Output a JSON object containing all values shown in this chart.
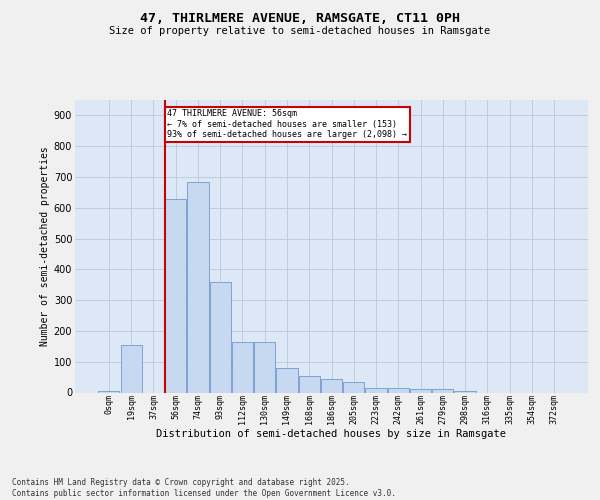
{
  "title": "47, THIRLMERE AVENUE, RAMSGATE, CT11 0PH",
  "subtitle": "Size of property relative to semi-detached houses in Ramsgate",
  "xlabel": "Distribution of semi-detached houses by size in Ramsgate",
  "ylabel": "Number of semi-detached properties",
  "categories": [
    "0sqm",
    "19sqm",
    "37sqm",
    "56sqm",
    "74sqm",
    "93sqm",
    "112sqm",
    "130sqm",
    "149sqm",
    "168sqm",
    "186sqm",
    "205sqm",
    "223sqm",
    "242sqm",
    "261sqm",
    "279sqm",
    "298sqm",
    "316sqm",
    "335sqm",
    "354sqm",
    "372sqm"
  ],
  "values": [
    5,
    155,
    0,
    630,
    685,
    360,
    165,
    165,
    80,
    55,
    45,
    35,
    15,
    15,
    12,
    10,
    5,
    0,
    0,
    0,
    0
  ],
  "bar_color": "#c6d9f0",
  "bar_edge_color": "#5a8ac6",
  "property_bar_index": 3,
  "annotation_text": "47 THIRLMERE AVENUE: 56sqm\n← 7% of semi-detached houses are smaller (153)\n93% of semi-detached houses are larger (2,098) →",
  "annotation_box_color": "#ffffff",
  "annotation_box_edge": "#cc0000",
  "vline_color": "#cc0000",
  "grid_color": "#b8c8d8",
  "plot_bg_color": "#dce8f5",
  "fig_bg_color": "#f0f0f0",
  "footer_text": "Contains HM Land Registry data © Crown copyright and database right 2025.\nContains public sector information licensed under the Open Government Licence v3.0.",
  "ylim": [
    0,
    950
  ],
  "yticks": [
    0,
    100,
    200,
    300,
    400,
    500,
    600,
    700,
    800,
    900
  ]
}
